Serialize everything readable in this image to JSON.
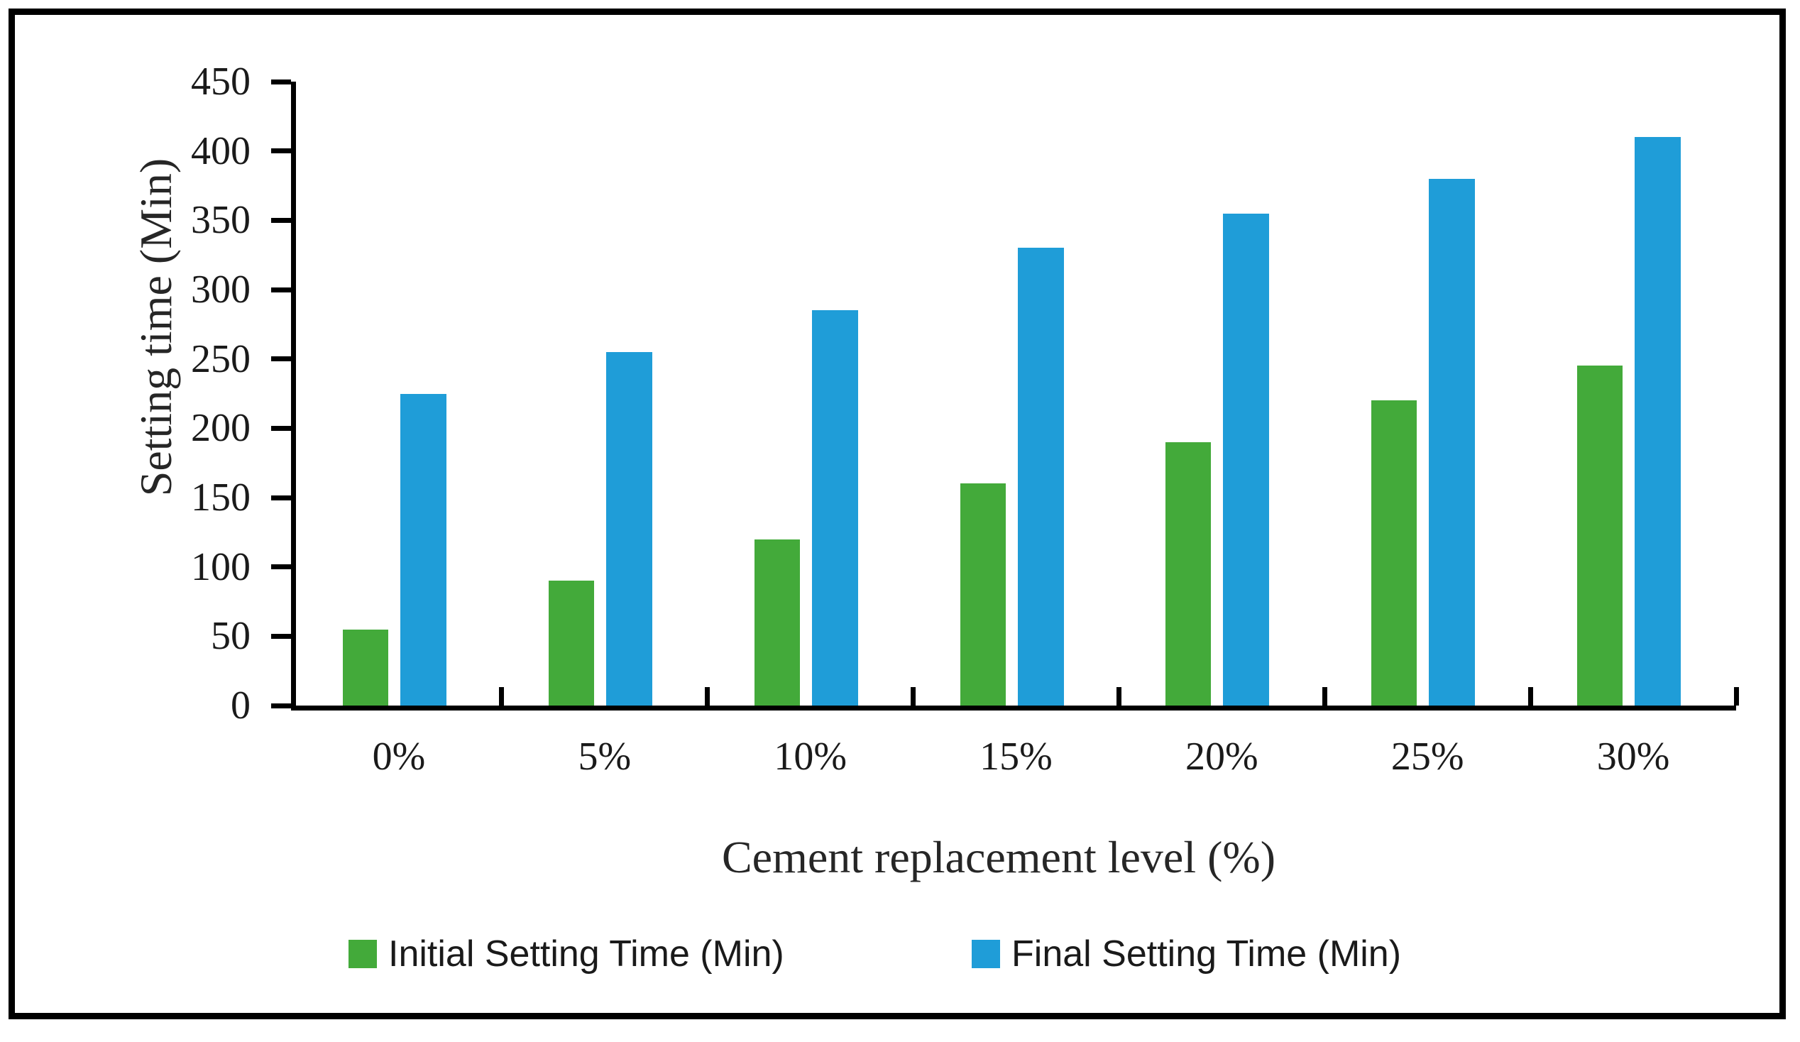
{
  "chart_data": {
    "type": "bar",
    "title": "",
    "categories": [
      "0%",
      "5%",
      "10%",
      "15%",
      "20%",
      "25%",
      "30%"
    ],
    "series": [
      {
        "name": "Initial Setting Time (Min)",
        "color": "#43aa3a",
        "values": [
          55,
          90,
          120,
          160,
          190,
          220,
          245
        ]
      },
      {
        "name": "Final Setting Time (Min)",
        "color": "#1f9dd8",
        "values": [
          225,
          255,
          285,
          330,
          355,
          380,
          410
        ]
      }
    ],
    "xlabel": "Cement replacement level (%)",
    "ylabel": "Setting time (Min)",
    "ylim": [
      0,
      450
    ],
    "ytick_step": 50,
    "yticks": [
      0,
      50,
      100,
      150,
      200,
      250,
      300,
      350,
      400,
      450
    ],
    "grid": false,
    "legend_position": "bottom",
    "axis_color": "#000000",
    "frame_border_color": "#000000"
  }
}
